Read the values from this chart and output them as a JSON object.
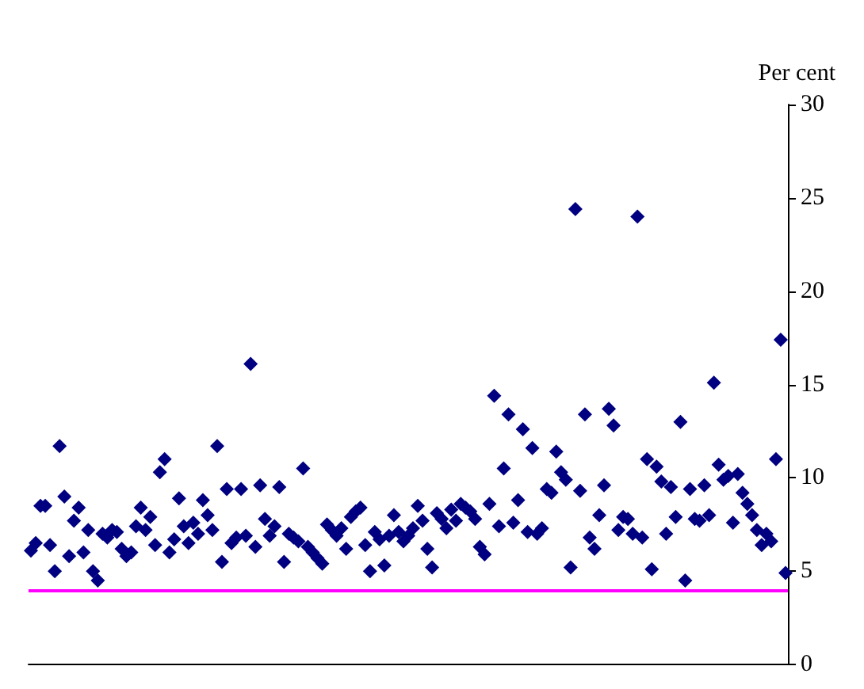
{
  "chart_data": {
    "type": "scatter",
    "ylabel": "Per cent",
    "categories": [
      null,
      null,
      null,
      null,
      null,
      null,
      null,
      null,
      null,
      null,
      null,
      null,
      null,
      null,
      null,
      null,
      null,
      null,
      null,
      null,
      null,
      null,
      null,
      null,
      null,
      null,
      null,
      null,
      null,
      null,
      null,
      null,
      null,
      null,
      null,
      null,
      null,
      null,
      null,
      null,
      null,
      null,
      null,
      null,
      null,
      null,
      null,
      null,
      null,
      null,
      null,
      null,
      null,
      null,
      null,
      null,
      null,
      null,
      null,
      null,
      null,
      null,
      null,
      null,
      null,
      null,
      null,
      null,
      null,
      null,
      null,
      null,
      null,
      null,
      null,
      null,
      null,
      null,
      null,
      null,
      null,
      null,
      null,
      null,
      null,
      null,
      null,
      null,
      null,
      null,
      null,
      null,
      null,
      null,
      null,
      null,
      null,
      null,
      null,
      null,
      null,
      null,
      null,
      null,
      null,
      null,
      null,
      null,
      null,
      null,
      null,
      null,
      null,
      null,
      null,
      null,
      null,
      null,
      null,
      null,
      null,
      null,
      null,
      null,
      null,
      null,
      null,
      null,
      null,
      null,
      null,
      null,
      null,
      null,
      null,
      null,
      null,
      null,
      null,
      null,
      null,
      null,
      null,
      null,
      null,
      null,
      null,
      null,
      null,
      null,
      null,
      null,
      null,
      null,
      null,
      null,
      null,
      null,
      null
    ],
    "series": [
      {
        "color": "#000080",
        "values": [
          6.1,
          6.5,
          8.5,
          8.5,
          6.4,
          5.0,
          11.7,
          9.0,
          5.8,
          7.7,
          8.4,
          6.0,
          7.2,
          5.0,
          4.5,
          7.0,
          6.8,
          7.2,
          7.1,
          6.2,
          5.8,
          6.0,
          7.4,
          8.4,
          7.2,
          7.9,
          6.4,
          10.3,
          11.0,
          6.0,
          6.7,
          8.9,
          7.4,
          6.5,
          7.6,
          7.0,
          8.8,
          8.0,
          7.2,
          11.7,
          5.5,
          9.4,
          6.5,
          6.8,
          9.4,
          6.9,
          16.1,
          6.3,
          9.6,
          7.8,
          6.9,
          7.4,
          9.5,
          5.5,
          7.0,
          6.8,
          6.6,
          10.5,
          6.3,
          6.0,
          5.7,
          5.4,
          7.5,
          7.2,
          6.9,
          7.3,
          6.2,
          7.9,
          8.2,
          8.4,
          6.4,
          5.0,
          7.1,
          6.7,
          5.3,
          6.9,
          8.0,
          7.1,
          6.6,
          6.9,
          7.3,
          8.5,
          7.7,
          6.2,
          5.2,
          8.1,
          7.8,
          7.3,
          8.3,
          7.7,
          8.6,
          8.4,
          8.2,
          7.8,
          6.3,
          5.9,
          8.6,
          14.4,
          7.4,
          10.5,
          13.4,
          7.6,
          8.8,
          12.6,
          7.1,
          11.6,
          7.0,
          7.3,
          9.4,
          9.2,
          11.4,
          10.3,
          9.9,
          5.2,
          24.4,
          9.3,
          13.4,
          6.8,
          6.2,
          8.0,
          9.6,
          13.7,
          12.8,
          7.2,
          7.9,
          7.8,
          7.0,
          24.0,
          6.8,
          11.0,
          5.1,
          10.6,
          9.8,
          7.0,
          9.5,
          7.9,
          13.0,
          4.5,
          9.4,
          7.8,
          7.7,
          9.6,
          8.0,
          15.1,
          10.7,
          9.9,
          10.1,
          7.6,
          10.2,
          9.2,
          8.6,
          8.0,
          7.2,
          6.4,
          7.0,
          6.6,
          11.0,
          17.4,
          4.9
        ]
      }
    ],
    "ylim": [
      0,
      30
    ],
    "yticks": [
      0,
      5,
      10,
      15,
      20,
      25,
      30
    ],
    "ref_lines": [
      {
        "axis": "y",
        "value": 4,
        "color": "#ff00ff"
      }
    ],
    "marker": "diamond",
    "grid": false,
    "tick_labels": "y"
  }
}
